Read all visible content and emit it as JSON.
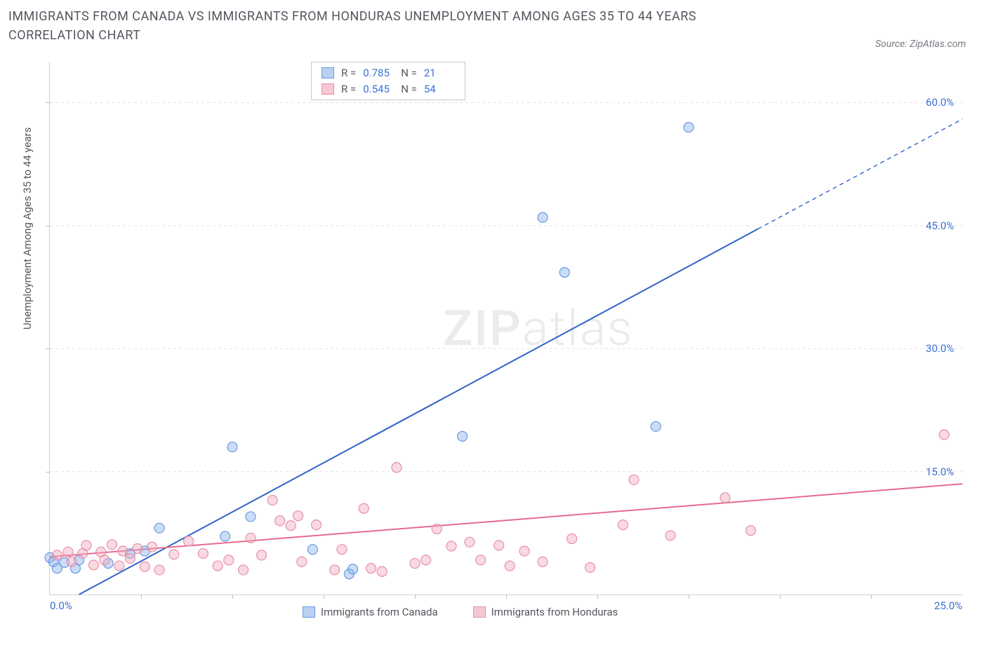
{
  "title_text": "IMMIGRANTS FROM CANADA VS IMMIGRANTS FROM HONDURAS UNEMPLOYMENT AMONG AGES 35 TO 44 YEARS CORRELATION CHART",
  "source_text": "Source: ZipAtlas.com",
  "y_axis_label": "Unemployment Among Ages 35 to 44 years",
  "watermark_zip": "ZIP",
  "watermark_atlas": "atlas",
  "chart": {
    "type": "scatter",
    "x_min": 0.0,
    "x_max": 25.0,
    "y_min": 0.0,
    "y_max": 65.0,
    "x_tick_labels": {
      "left": "0.0%",
      "right": "25.0%"
    },
    "y_ticks": [
      {
        "v": 15.0,
        "label": "15.0%"
      },
      {
        "v": 30.0,
        "label": "30.0%"
      },
      {
        "v": 45.0,
        "label": "45.0%"
      },
      {
        "v": 60.0,
        "label": "60.0%"
      }
    ],
    "x_minor_ticks": [
      2.5,
      5.0,
      7.5,
      10.0,
      12.5,
      15.0,
      17.5,
      20.0,
      22.5
    ],
    "grid_color": "#e3e3e8",
    "background_color": "#ffffff",
    "marker_radius": 7,
    "marker_stroke_width": 1.2,
    "line_width": 2,
    "series": [
      {
        "name": "Immigrants from Canada",
        "color_fill": "rgba(140,180,235,0.45)",
        "color_stroke": "#6a9ae0",
        "line_color": "#2f63c9",
        "R": "0.785",
        "N": "21",
        "regression": {
          "x1": 0.8,
          "y1": 0.0,
          "x2": 19.4,
          "y2": 44.6
        },
        "regression_dashed_ext": {
          "x1": 19.4,
          "y1": 44.6,
          "x2": 25.0,
          "y2": 58.0
        },
        "points": [
          [
            0.0,
            4.5
          ],
          [
            0.1,
            4.0
          ],
          [
            0.2,
            3.2
          ],
          [
            0.4,
            3.9
          ],
          [
            0.7,
            3.2
          ],
          [
            0.8,
            4.2
          ],
          [
            1.6,
            3.8
          ],
          [
            2.2,
            5.0
          ],
          [
            2.6,
            5.3
          ],
          [
            3.0,
            8.1
          ],
          [
            4.8,
            7.1
          ],
          [
            5.0,
            18.0
          ],
          [
            5.5,
            9.5
          ],
          [
            7.2,
            5.5
          ],
          [
            8.2,
            2.5
          ],
          [
            8.3,
            3.1
          ],
          [
            11.3,
            19.3
          ],
          [
            14.1,
            39.3
          ],
          [
            13.5,
            46.0
          ],
          [
            16.6,
            20.5
          ],
          [
            17.5,
            57.0
          ]
        ]
      },
      {
        "name": "Immigrants from Honduras",
        "color_fill": "rgba(242,170,190,0.45)",
        "color_stroke": "#e890a8",
        "line_color": "#e76a8e",
        "R": "0.545",
        "N": "54",
        "regression": {
          "x1": 0.0,
          "y1": 4.6,
          "x2": 25.0,
          "y2": 13.5
        },
        "points": [
          [
            0.2,
            4.8
          ],
          [
            0.5,
            5.2
          ],
          [
            0.6,
            4.0
          ],
          [
            0.9,
            5.0
          ],
          [
            1.0,
            6.0
          ],
          [
            1.2,
            3.6
          ],
          [
            1.4,
            5.2
          ],
          [
            1.5,
            4.2
          ],
          [
            1.7,
            6.1
          ],
          [
            1.9,
            3.5
          ],
          [
            2.0,
            5.3
          ],
          [
            2.2,
            4.4
          ],
          [
            2.4,
            5.6
          ],
          [
            2.6,
            3.4
          ],
          [
            2.8,
            5.8
          ],
          [
            3.0,
            3.0
          ],
          [
            3.4,
            4.9
          ],
          [
            3.8,
            6.5
          ],
          [
            4.2,
            5.0
          ],
          [
            4.6,
            3.5
          ],
          [
            4.9,
            4.2
          ],
          [
            5.3,
            3.0
          ],
          [
            5.5,
            6.9
          ],
          [
            5.8,
            4.8
          ],
          [
            6.1,
            11.5
          ],
          [
            6.3,
            9.0
          ],
          [
            6.6,
            8.4
          ],
          [
            6.8,
            9.6
          ],
          [
            6.9,
            4.0
          ],
          [
            7.3,
            8.5
          ],
          [
            7.8,
            3.0
          ],
          [
            8.0,
            5.5
          ],
          [
            8.6,
            10.5
          ],
          [
            8.8,
            3.2
          ],
          [
            9.1,
            2.8
          ],
          [
            9.5,
            15.5
          ],
          [
            10.0,
            3.8
          ],
          [
            10.3,
            4.2
          ],
          [
            10.6,
            8.0
          ],
          [
            11.0,
            5.9
          ],
          [
            11.5,
            6.4
          ],
          [
            11.8,
            4.2
          ],
          [
            12.3,
            6.0
          ],
          [
            12.6,
            3.5
          ],
          [
            13.0,
            5.3
          ],
          [
            13.5,
            4.0
          ],
          [
            14.3,
            6.8
          ],
          [
            14.8,
            3.3
          ],
          [
            15.7,
            8.5
          ],
          [
            16.0,
            14.0
          ],
          [
            17.0,
            7.2
          ],
          [
            18.5,
            11.8
          ],
          [
            19.2,
            7.8
          ],
          [
            24.5,
            19.5
          ]
        ]
      }
    ]
  },
  "legend": {
    "item1": "Immigrants from Canada",
    "item2": "Immigrants from Honduras"
  },
  "stats_labels": {
    "R": "R =",
    "N": "N ="
  }
}
